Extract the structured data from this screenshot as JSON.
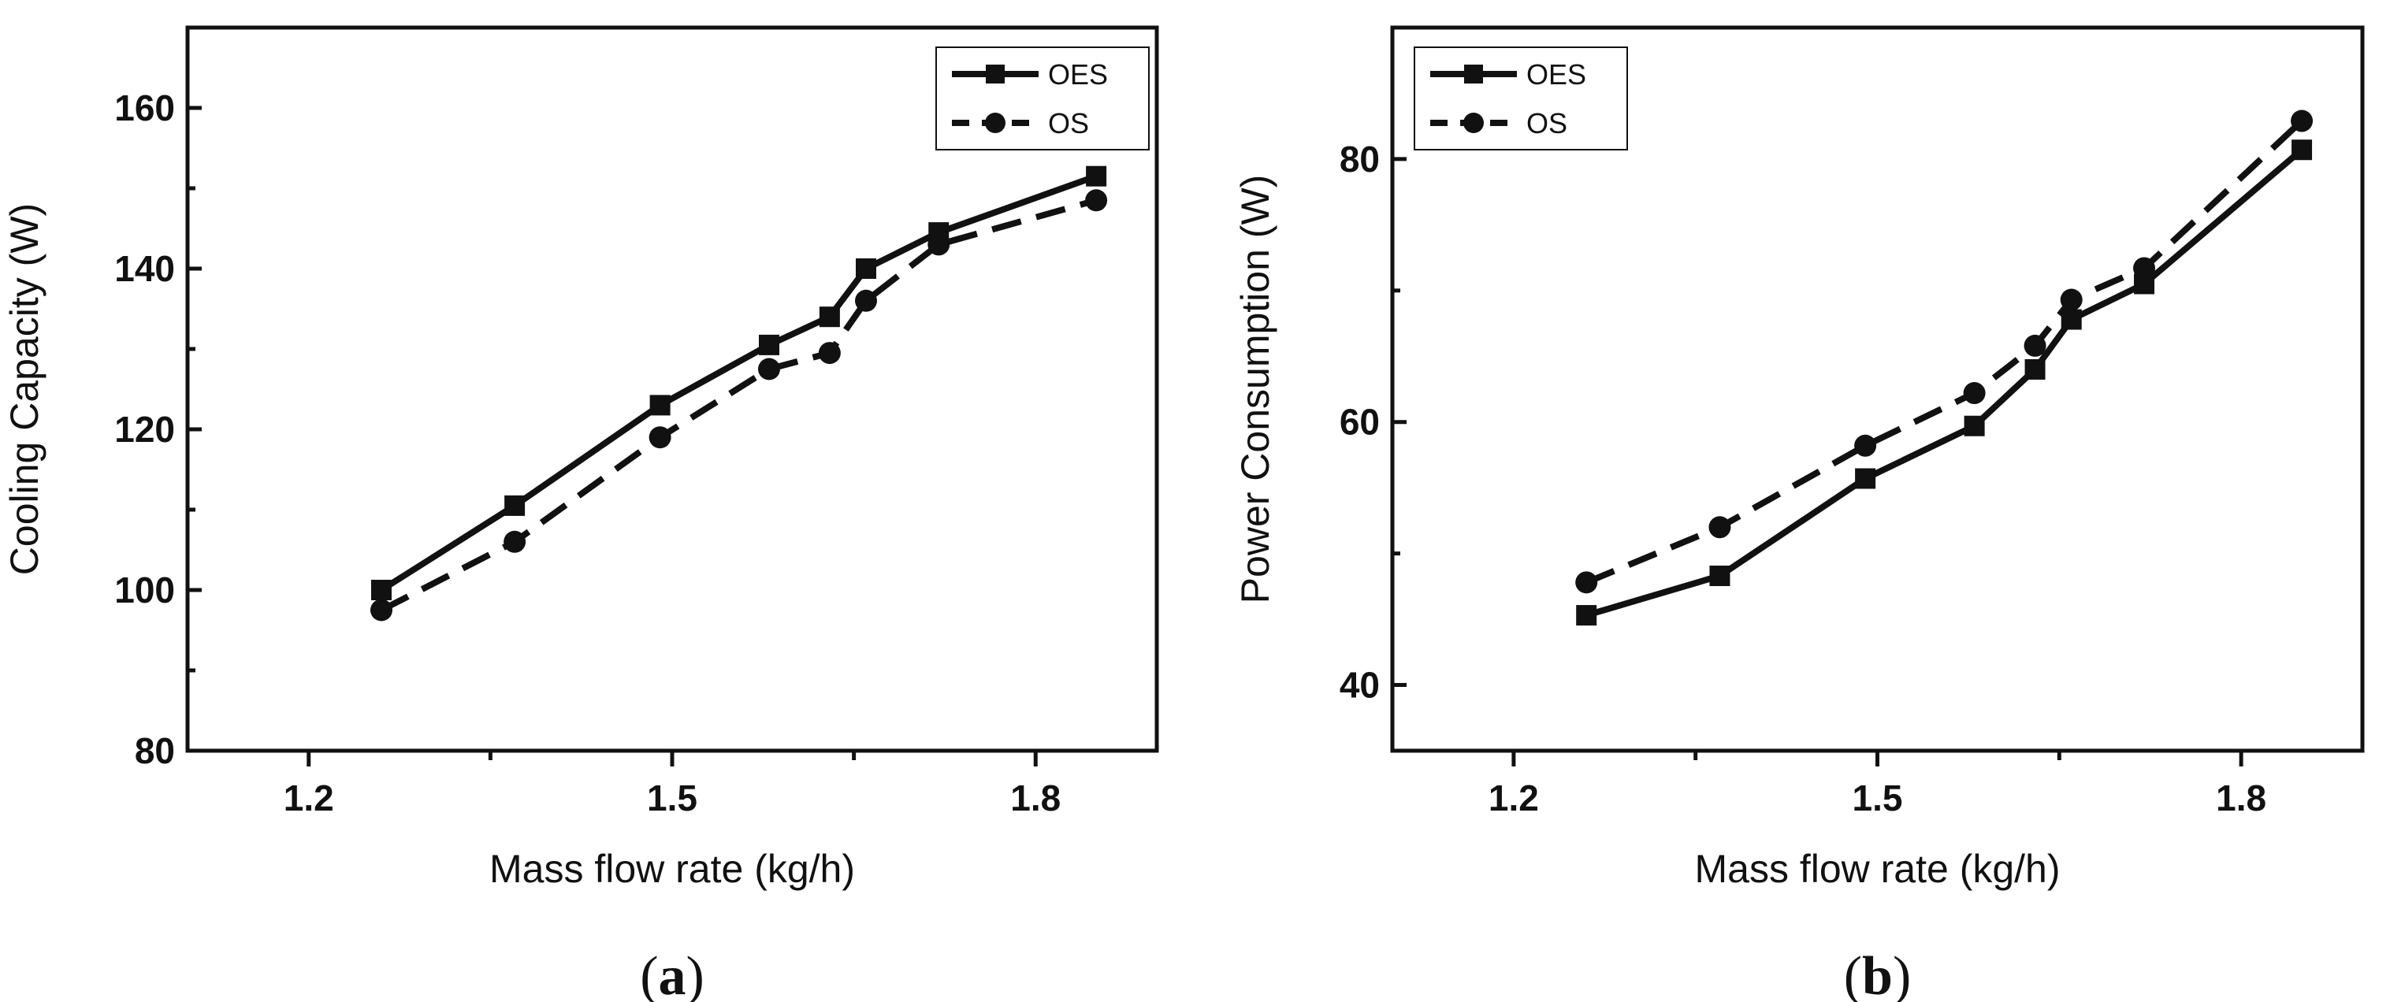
{
  "chart_data": [
    {
      "type": "line",
      "panel_label": "a",
      "xlabel": "Mass flow rate (kg/h)",
      "ylabel": "Cooling Capacity (W)",
      "xlim": [
        1.1,
        1.9
      ],
      "ylim": [
        80,
        170
      ],
      "xticks": [
        1.2,
        1.5,
        1.8
      ],
      "xtick_labels": [
        "1.2",
        "1.5",
        "1.8"
      ],
      "yticks": [
        80,
        100,
        120,
        140,
        160
      ],
      "ytick_labels": [
        "80",
        "100",
        "120",
        "140",
        "160"
      ],
      "grid": false,
      "legend_position": "top-right",
      "series": [
        {
          "name": "OES",
          "style": "solid",
          "marker": "square",
          "x": [
            1.26,
            1.37,
            1.49,
            1.58,
            1.63,
            1.66,
            1.72,
            1.85
          ],
          "y": [
            100,
            110.5,
            123,
            130.5,
            134,
            140,
            144.5,
            151.5
          ]
        },
        {
          "name": "OS",
          "style": "dashed",
          "marker": "circle",
          "x": [
            1.26,
            1.37,
            1.49,
            1.58,
            1.63,
            1.66,
            1.72,
            1.85
          ],
          "y": [
            97.5,
            106,
            119,
            127.5,
            129.5,
            136,
            143,
            148.5
          ]
        }
      ]
    },
    {
      "type": "line",
      "panel_label": "b",
      "xlabel": "Mass flow rate (kg/h)",
      "ylabel": "Power Consumption (W)",
      "xlim": [
        1.1,
        1.9
      ],
      "ylim": [
        35,
        90
      ],
      "xticks": [
        1.2,
        1.5,
        1.8
      ],
      "xtick_labels": [
        "1.2",
        "1.5",
        "1.8"
      ],
      "yticks": [
        40,
        60,
        80
      ],
      "ytick_labels": [
        "40",
        "60",
        "80"
      ],
      "grid": false,
      "legend_position": "top-left",
      "series": [
        {
          "name": "OES",
          "style": "solid",
          "marker": "square",
          "x": [
            1.26,
            1.37,
            1.49,
            1.58,
            1.63,
            1.66,
            1.72,
            1.85
          ],
          "y": [
            45.3,
            48.3,
            55.7,
            59.7,
            64.0,
            67.8,
            70.5,
            80.7
          ]
        },
        {
          "name": "OS",
          "style": "dashed",
          "marker": "circle",
          "x": [
            1.26,
            1.37,
            1.49,
            1.58,
            1.63,
            1.66,
            1.72,
            1.85
          ],
          "y": [
            47.8,
            52.0,
            58.2,
            62.2,
            65.8,
            69.3,
            71.7,
            82.9
          ]
        }
      ]
    }
  ]
}
